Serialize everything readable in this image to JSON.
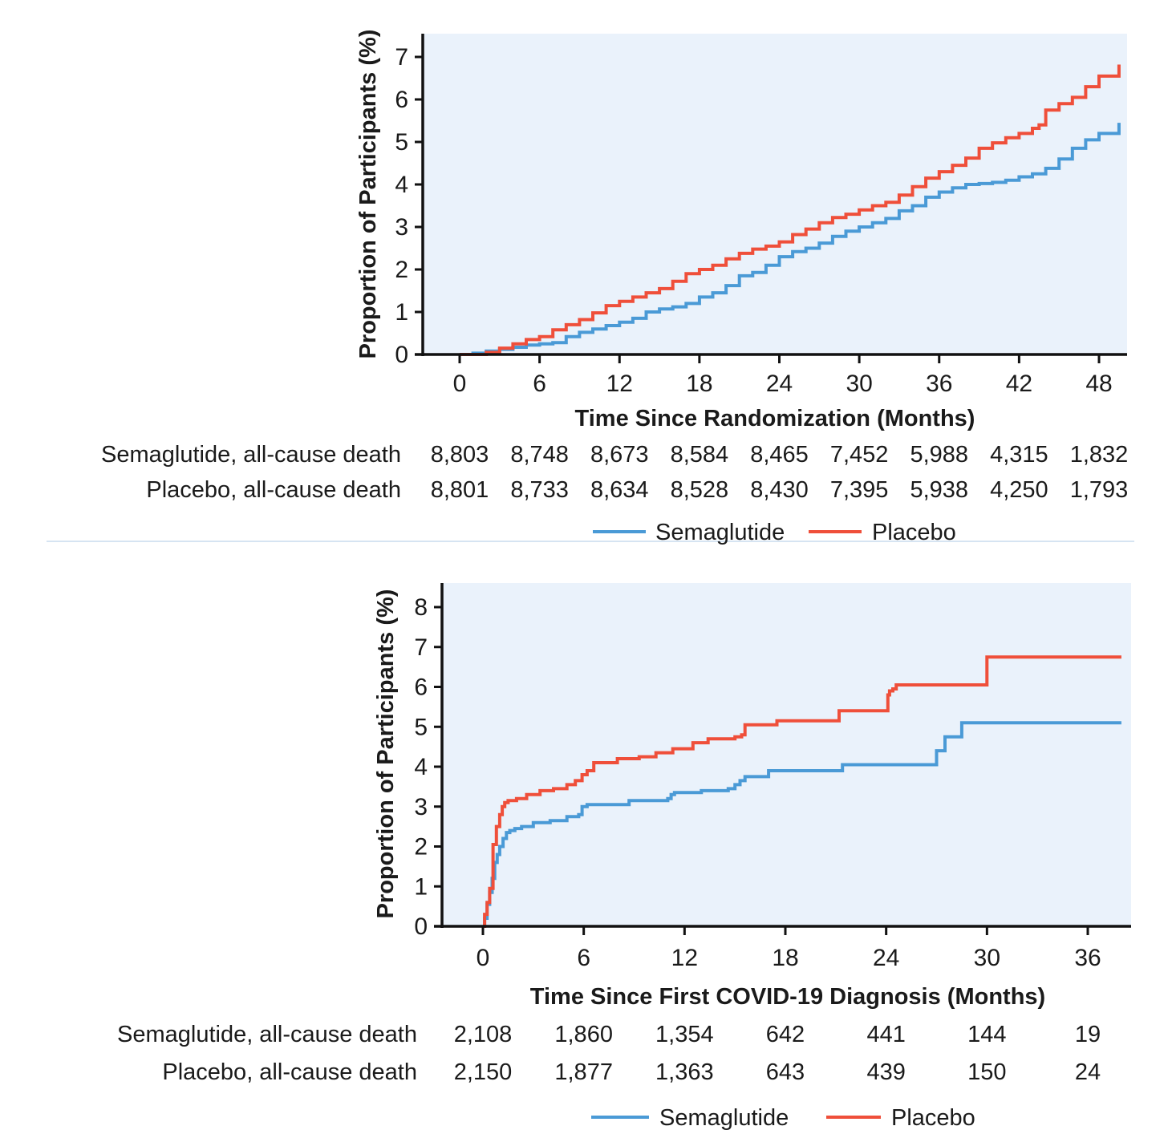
{
  "colors": {
    "semaglutide": "#4a9ad6",
    "placebo": "#ef4f3a",
    "plot_background": "#eaf2fb",
    "axis": "#111111",
    "divider": "#d6e4f2"
  },
  "chart_data": [
    {
      "type": "line",
      "step": true,
      "title": "",
      "xlabel": "Time Since Randomization (Months)",
      "ylabel": "Proportion of Participants (%)",
      "xlim": [
        -2.5,
        50
      ],
      "ylim": [
        0,
        7.5
      ],
      "xticks": [
        0,
        6,
        12,
        18,
        24,
        30,
        36,
        42,
        48
      ],
      "yticks": [
        0,
        1,
        2,
        3,
        4,
        5,
        6,
        7
      ],
      "grid": false,
      "legend": {
        "position": "bottom-center",
        "entries": [
          "Semaglutide",
          "Placebo"
        ]
      },
      "series": [
        {
          "name": "Semaglutide",
          "color_key": "semaglutide",
          "x": [
            0,
            1,
            2,
            3,
            4,
            5,
            6,
            7,
            8,
            9,
            10,
            11,
            12,
            13,
            14,
            15,
            16,
            17,
            18,
            19,
            20,
            21,
            22,
            23,
            24,
            25,
            26,
            27,
            28,
            29,
            30,
            31,
            32,
            33,
            34,
            35,
            36,
            37,
            38,
            39,
            40,
            41,
            42,
            43,
            44,
            45,
            46,
            47,
            48,
            49.5
          ],
          "y": [
            0,
            0.03,
            0.08,
            0.12,
            0.17,
            0.22,
            0.25,
            0.28,
            0.42,
            0.52,
            0.6,
            0.68,
            0.76,
            0.85,
            1.0,
            1.07,
            1.12,
            1.2,
            1.35,
            1.45,
            1.62,
            1.85,
            1.93,
            2.1,
            2.3,
            2.42,
            2.5,
            2.62,
            2.78,
            2.9,
            3.0,
            3.1,
            3.2,
            3.38,
            3.5,
            3.7,
            3.82,
            3.92,
            4.0,
            4.02,
            4.05,
            4.1,
            4.18,
            4.25,
            4.38,
            4.6,
            4.85,
            5.05,
            5.2,
            5.45
          ]
        },
        {
          "name": "Placebo",
          "color_key": "placebo",
          "x": [
            0,
            1,
            2,
            3,
            4,
            5,
            6,
            7,
            8,
            9,
            10,
            11,
            12,
            13,
            14,
            15,
            16,
            17,
            18,
            19,
            20,
            21,
            22,
            23,
            24,
            25,
            26,
            27,
            28,
            29,
            30,
            31,
            32,
            33,
            34,
            35,
            36,
            37,
            38,
            39,
            40,
            41,
            42,
            43,
            43.5,
            44,
            45,
            46,
            47,
            48,
            49.5
          ],
          "y": [
            0,
            0.0,
            0.05,
            0.15,
            0.25,
            0.35,
            0.42,
            0.58,
            0.7,
            0.82,
            0.98,
            1.15,
            1.25,
            1.35,
            1.45,
            1.55,
            1.72,
            1.9,
            2.0,
            2.1,
            2.25,
            2.38,
            2.48,
            2.55,
            2.65,
            2.82,
            2.95,
            3.1,
            3.22,
            3.3,
            3.4,
            3.5,
            3.58,
            3.75,
            3.95,
            4.15,
            4.3,
            4.45,
            4.62,
            4.85,
            4.98,
            5.1,
            5.2,
            5.32,
            5.4,
            5.75,
            5.9,
            6.05,
            6.3,
            6.55,
            6.82
          ]
        }
      ],
      "risk_table": {
        "times": [
          0,
          6,
          12,
          18,
          24,
          30,
          36,
          42,
          48
        ],
        "rows": [
          {
            "label": "Semaglutide, all-cause death",
            "values": [
              "8,803",
              "8,748",
              "8,673",
              "8,584",
              "8,465",
              "7,452",
              "5,988",
              "4,315",
              "1,832"
            ]
          },
          {
            "label": "Placebo, all-cause death",
            "values": [
              "8,801",
              "8,733",
              "8,634",
              "8,528",
              "8,430",
              "7,395",
              "5,938",
              "4,250",
              "1,793"
            ]
          }
        ]
      }
    },
    {
      "type": "line",
      "step": true,
      "title": "",
      "xlabel": "Time Since First COVID-19 Diagnosis (Months)",
      "ylabel": "Proportion of Participants (%)",
      "xlim": [
        -2.4,
        38.6
      ],
      "ylim": [
        0,
        8.6
      ],
      "xticks": [
        0,
        6,
        12,
        18,
        24,
        30,
        36
      ],
      "yticks": [
        0,
        1,
        2,
        3,
        4,
        5,
        6,
        7,
        8
      ],
      "grid": false,
      "legend": {
        "position": "bottom-center",
        "entries": [
          "Semaglutide",
          "Placebo"
        ]
      },
      "series": [
        {
          "name": "Semaglutide",
          "color_key": "semaglutide",
          "x": [
            0,
            0.1,
            0.25,
            0.4,
            0.55,
            0.7,
            0.85,
            1.0,
            1.2,
            1.4,
            1.6,
            1.9,
            2.3,
            3.0,
            4.0,
            5.0,
            5.7,
            5.9,
            6.2,
            8.7,
            11.0,
            11.2,
            11.4,
            13.0,
            14.6,
            15.0,
            15.3,
            15.6,
            17.0,
            19.5,
            21.4,
            27.0,
            27.5,
            28.5,
            38.0
          ],
          "y": [
            0,
            0.2,
            0.55,
            0.85,
            1.2,
            1.6,
            1.8,
            2.0,
            2.2,
            2.35,
            2.4,
            2.45,
            2.5,
            2.6,
            2.65,
            2.75,
            2.8,
            3.0,
            3.05,
            3.15,
            3.2,
            3.3,
            3.35,
            3.4,
            3.45,
            3.55,
            3.65,
            3.75,
            3.9,
            3.9,
            4.05,
            4.4,
            4.75,
            5.1,
            5.1
          ]
        },
        {
          "name": "Placebo",
          "color_key": "placebo",
          "x": [
            0,
            0.1,
            0.25,
            0.4,
            0.6,
            0.8,
            1.0,
            1.15,
            1.3,
            1.5,
            1.7,
            2.0,
            2.6,
            3.4,
            4.2,
            5.0,
            5.5,
            5.9,
            6.2,
            6.6,
            8.0,
            9.3,
            10.3,
            11.3,
            12.5,
            13.4,
            15.0,
            15.4,
            15.6,
            17.5,
            21.2,
            24.1,
            24.2,
            24.4,
            24.6,
            30.0,
            38.0
          ],
          "y": [
            0,
            0.3,
            0.6,
            0.95,
            2.05,
            2.5,
            2.8,
            3.0,
            3.1,
            3.15,
            3.15,
            3.2,
            3.3,
            3.4,
            3.45,
            3.55,
            3.65,
            3.8,
            3.9,
            4.1,
            4.2,
            4.25,
            4.35,
            4.45,
            4.6,
            4.7,
            4.75,
            4.8,
            5.05,
            5.15,
            5.4,
            5.8,
            5.9,
            5.95,
            6.05,
            6.75,
            6.75
          ]
        }
      ],
      "risk_table": {
        "times": [
          0,
          6,
          12,
          18,
          24,
          30,
          36
        ],
        "rows": [
          {
            "label": "Semaglutide, all-cause death",
            "values": [
              "2,108",
              "1,860",
              "1,354",
              "642",
              "441",
              "144",
              "19"
            ]
          },
          {
            "label": "Placebo, all-cause death",
            "values": [
              "2,150",
              "1,877",
              "1,363",
              "643",
              "439",
              "150",
              "24"
            ]
          }
        ]
      }
    }
  ]
}
